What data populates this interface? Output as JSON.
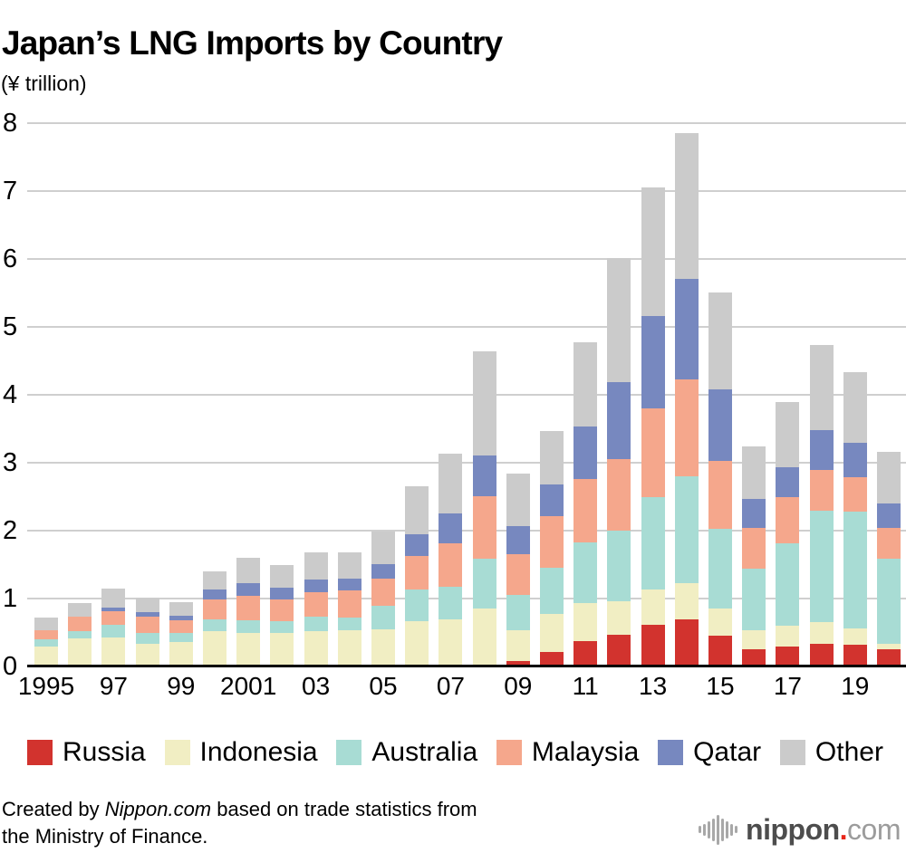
{
  "title": "Japan’s LNG Imports by Country",
  "unit_label": "(¥ trillion)",
  "chart_data": {
    "type": "bar",
    "stacked": true,
    "title": "Japan’s LNG Imports by Country",
    "ylabel": "(¥ trillion)",
    "ylim": [
      0,
      8
    ],
    "yticks": [
      0,
      1,
      2,
      3,
      4,
      5,
      6,
      7,
      8
    ],
    "grid": true,
    "legend_position": "bottom",
    "categories": [
      1995,
      1996,
      1997,
      1998,
      1999,
      2000,
      2001,
      2002,
      2003,
      2004,
      2005,
      2006,
      2007,
      2008,
      2009,
      2010,
      2011,
      2012,
      2013,
      2014,
      2015,
      2016,
      2017,
      2018,
      2019,
      2020
    ],
    "x_ticks": [
      {
        "bar_index": 0,
        "label": "1995"
      },
      {
        "bar_index": 2,
        "label": "97"
      },
      {
        "bar_index": 4,
        "label": "99"
      },
      {
        "bar_index": 6,
        "label": "2001"
      },
      {
        "bar_index": 8,
        "label": "03"
      },
      {
        "bar_index": 10,
        "label": "05"
      },
      {
        "bar_index": 12,
        "label": "07"
      },
      {
        "bar_index": 14,
        "label": "09"
      },
      {
        "bar_index": 16,
        "label": "11"
      },
      {
        "bar_index": 18,
        "label": "13"
      },
      {
        "bar_index": 20,
        "label": "15"
      },
      {
        "bar_index": 22,
        "label": "17"
      },
      {
        "bar_index": 24,
        "label": "19"
      }
    ],
    "series": [
      {
        "name": "Russia",
        "color": "#d2332e",
        "values": [
          0,
          0,
          0,
          0,
          0,
          0,
          0,
          0,
          0,
          0,
          0,
          0,
          0,
          0,
          0.08,
          0.21,
          0.37,
          0.47,
          0.62,
          0.7,
          0.46,
          0.26,
          0.3,
          0.34,
          0.32,
          0.25
        ]
      },
      {
        "name": "Indonesia",
        "color": "#f1eec3",
        "values": [
          0.29,
          0.41,
          0.43,
          0.34,
          0.36,
          0.52,
          0.5,
          0.49,
          0.52,
          0.53,
          0.55,
          0.67,
          0.7,
          0.86,
          0.45,
          0.57,
          0.56,
          0.49,
          0.52,
          0.53,
          0.39,
          0.28,
          0.3,
          0.31,
          0.24,
          0.09
        ]
      },
      {
        "name": "Australia",
        "color": "#a8dcd4",
        "values": [
          0.11,
          0.11,
          0.18,
          0.16,
          0.14,
          0.17,
          0.18,
          0.18,
          0.22,
          0.19,
          0.34,
          0.47,
          0.48,
          0.73,
          0.52,
          0.68,
          0.9,
          1.04,
          1.35,
          1.57,
          1.18,
          0.9,
          1.22,
          1.64,
          1.72,
          1.25
        ]
      },
      {
        "name": "Malaysia",
        "color": "#f5a78c",
        "values": [
          0.14,
          0.21,
          0.2,
          0.24,
          0.18,
          0.3,
          0.36,
          0.32,
          0.36,
          0.4,
          0.41,
          0.49,
          0.63,
          0.92,
          0.61,
          0.76,
          0.93,
          1.06,
          1.31,
          1.43,
          1.0,
          0.6,
          0.68,
          0.6,
          0.51,
          0.45
        ]
      },
      {
        "name": "Qatar",
        "color": "#7788bf",
        "values": [
          0,
          0,
          0.06,
          0.06,
          0.07,
          0.14,
          0.19,
          0.17,
          0.18,
          0.18,
          0.21,
          0.32,
          0.44,
          0.6,
          0.41,
          0.46,
          0.77,
          1.13,
          1.36,
          1.48,
          1.05,
          0.43,
          0.44,
          0.59,
          0.5,
          0.36
        ]
      },
      {
        "name": "Other",
        "color": "#cbcbcb",
        "values": [
          0.18,
          0.21,
          0.28,
          0.22,
          0.2,
          0.27,
          0.37,
          0.34,
          0.4,
          0.38,
          0.48,
          0.7,
          0.89,
          1.53,
          0.77,
          0.79,
          1.25,
          1.82,
          1.9,
          2.14,
          1.43,
          0.77,
          0.96,
          1.25,
          1.05,
          0.76
        ]
      }
    ]
  },
  "footer": {
    "line1_prefix": "Created by ",
    "line1_brand": "Nippon.com",
    "line1_suffix": " based on trade statistics from",
    "line2": "the Ministry of Finance."
  },
  "logo": {
    "name": "nippon",
    "dot": ".",
    "tld": "com"
  }
}
